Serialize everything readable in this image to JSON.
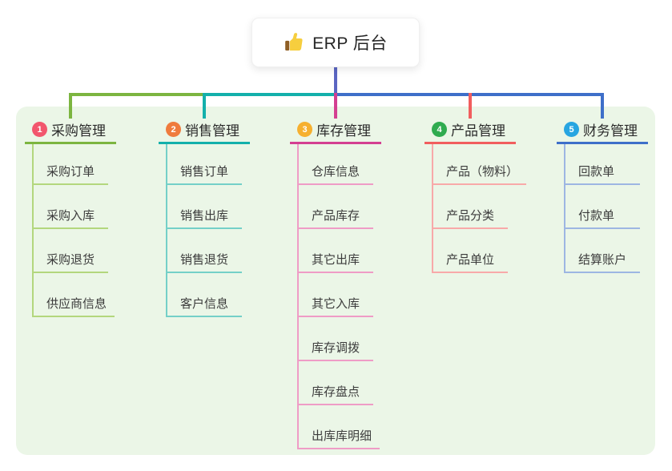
{
  "root": {
    "label": "ERP 后台",
    "icon": "thumbs-up-icon",
    "icon_colors": {
      "hand": "#f6ce3e",
      "cuff": "#8f5f26"
    },
    "stem_color": "#5b66c2"
  },
  "panel": {
    "background": "#ebf6e7"
  },
  "branches": [
    {
      "index": "1",
      "label": "采购管理",
      "badge_color": "#f2566d",
      "line_color": "#7cb540",
      "child_line_color": "#b3d77d",
      "children": [
        "采购订单",
        "采购入库",
        "采购退货",
        "供应商信息"
      ]
    },
    {
      "index": "2",
      "label": "销售管理",
      "badge_color": "#ef7b3d",
      "line_color": "#13b0ab",
      "child_line_color": "#74d0c8",
      "children": [
        "销售订单",
        "销售出库",
        "销售退货",
        "客户信息"
      ]
    },
    {
      "index": "3",
      "label": "库存管理",
      "badge_color": "#f6b02f",
      "line_color": "#d43f91",
      "child_line_color": "#ef9cc6",
      "children": [
        "仓库信息",
        "产品库存",
        "其它出库",
        "其它入库",
        "库存调拨",
        "库存盘点",
        "出库库明细"
      ]
    },
    {
      "index": "4",
      "label": "产品管理",
      "badge_color": "#2fab4f",
      "line_color": "#f15e5e",
      "child_line_color": "#f8a9a9",
      "children": [
        "产品（物料）",
        "产品分类",
        "产品单位"
      ]
    },
    {
      "index": "5",
      "label": "财务管理",
      "badge_color": "#27a5e1",
      "line_color": "#3e6fc9",
      "child_line_color": "#9db6e2",
      "children": [
        "回款单",
        "付款单",
        "结算账户"
      ]
    }
  ]
}
